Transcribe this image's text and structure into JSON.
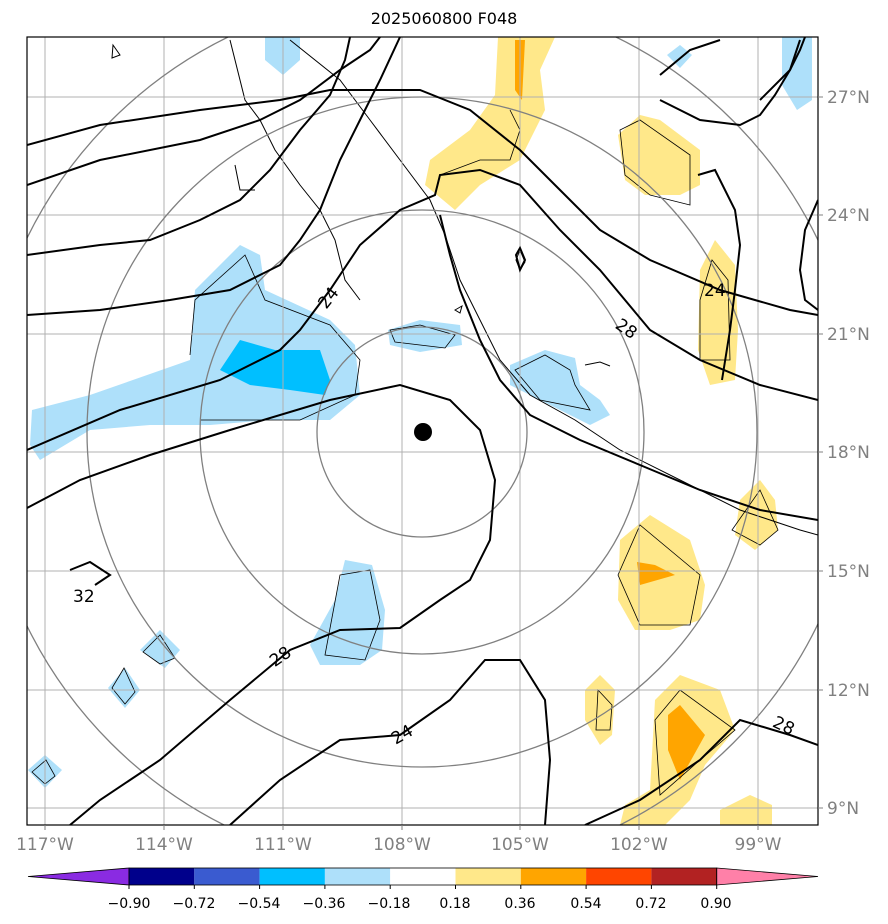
{
  "title": "2025060800 F048",
  "map": {
    "lon_range": [
      -117.6,
      -97.5
    ],
    "lat_range": [
      8.4,
      28.5
    ],
    "center_marker": {
      "lon": -107.5,
      "lat": 18.5
    },
    "lat_ticks": [
      "9°N",
      "12°N",
      "15°N",
      "18°N",
      "21°N",
      "24°N",
      "27°N"
    ],
    "lon_ticks": [
      "117°W",
      "114°W",
      "111°W",
      "108°W",
      "105°W",
      "102°W",
      "99°W"
    ],
    "contour_labels": [
      "24",
      "28",
      "24",
      "24",
      "28",
      "32",
      "28"
    ]
  },
  "colorbar": {
    "ticks": [
      "−0.90",
      "−0.72",
      "−0.54",
      "−0.36",
      "−0.18",
      "0.18",
      "0.36",
      "0.54",
      "0.72",
      "0.90"
    ],
    "colors": [
      "#8a2be2",
      "#00008b",
      "#3a5bd0",
      "#00bfff",
      "#aee0fa",
      "#ffffff",
      "#ffe88a",
      "#ffa500",
      "#ff4500",
      "#b22222",
      "#ff80a8"
    ]
  }
}
